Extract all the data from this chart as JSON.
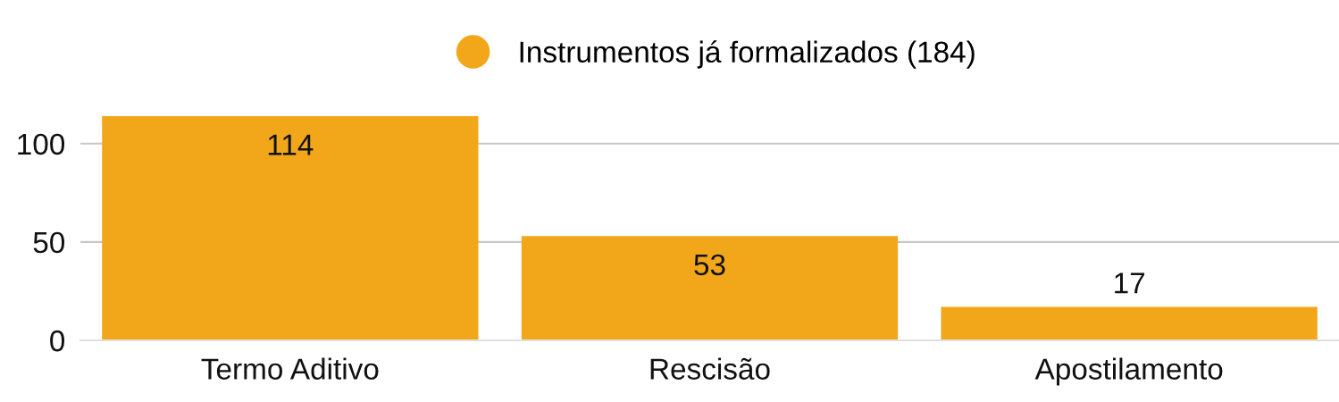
{
  "chart_data": {
    "type": "bar",
    "categories": [
      "Termo Aditivo",
      "Rescisão",
      "Apostilamento"
    ],
    "series": [
      {
        "name": "Instrumentos já formalizados (184)",
        "color": "#f2a71b",
        "values": [
          114,
          53,
          17
        ]
      }
    ],
    "ylim": [
      0,
      114
    ],
    "yticks": [
      0,
      50,
      100
    ],
    "grid": "y",
    "legend": "top",
    "data_labels": true
  }
}
